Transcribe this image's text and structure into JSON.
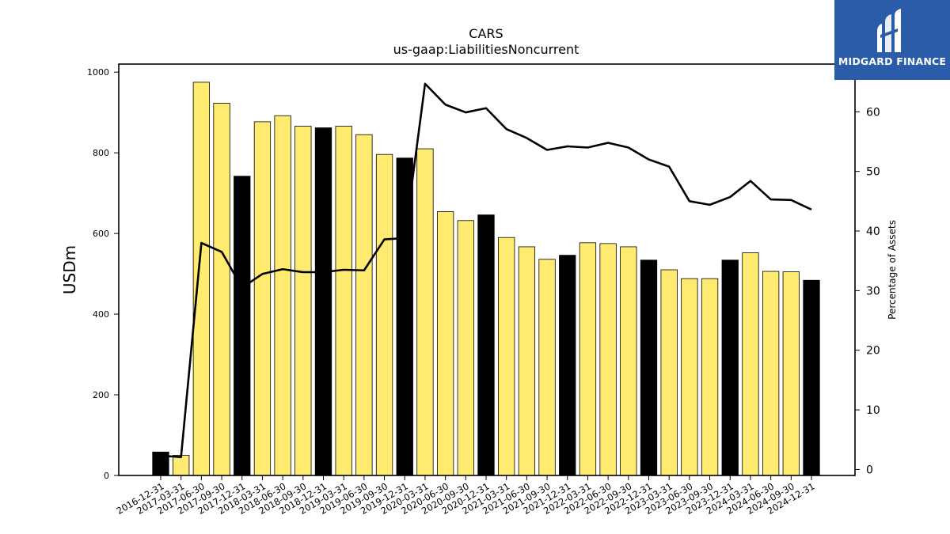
{
  "chart_data": {
    "type": "bar+line",
    "title": "CARS",
    "subtitle": "us-gaap:LiabilitiesNoncurrent",
    "ylabel": "USDm",
    "y2label": "Percentage of Assets",
    "ylim": [
      0,
      1020
    ],
    "y2lim": [
      -1,
      68
    ],
    "yticks": [
      0,
      200,
      400,
      600,
      800,
      1000
    ],
    "y2ticks": [
      0,
      10,
      20,
      30,
      40,
      50,
      60
    ],
    "categories": [
      "2016-12-31",
      "2017-03-31",
      "2017-06-30",
      "2017-09-30",
      "2017-12-31",
      "2018-03-31",
      "2018-06-30",
      "2018-09-30",
      "2018-12-31",
      "2019-03-31",
      "2019-06-30",
      "2019-09-30",
      "2019-12-31",
      "2020-03-31",
      "2020-06-30",
      "2020-09-30",
      "2020-12-31",
      "2021-03-31",
      "2021-06-30",
      "2021-09-30",
      "2021-12-31",
      "2022-03-31",
      "2022-06-30",
      "2022-09-30",
      "2022-12-31",
      "2023-03-31",
      "2023-06-30",
      "2023-09-30",
      "2023-12-31",
      "2024-03-31",
      "2024-06-30",
      "2024-09-30",
      "2024-12-31"
    ],
    "series": [
      {
        "kind": "bar",
        "values": [
          58,
          50,
          975,
          923,
          742,
          877,
          892,
          866,
          862,
          866,
          845,
          796,
          787,
          810,
          654,
          632,
          646,
          590,
          567,
          536,
          546,
          577,
          575,
          567,
          534,
          510,
          488,
          488,
          534,
          552,
          506,
          505,
          484
        ],
        "annual_color": "#000000",
        "quarterly_color": "#ffeb70"
      },
      {
        "kind": "line",
        "axis": "right",
        "color": "#000000",
        "values": [
          2.3,
          2.1,
          38.0,
          36.5,
          30.5,
          32.8,
          33.6,
          33.1,
          33.1,
          33.5,
          33.4,
          38.6,
          38.8,
          64.7,
          61.2,
          59.9,
          60.6,
          57.1,
          55.6,
          53.6,
          54.2,
          54.0,
          54.8,
          54.0,
          52.0,
          50.8,
          45.0,
          44.4,
          45.7,
          48.4,
          45.3,
          45.2,
          43.6
        ]
      }
    ]
  },
  "logo": {
    "text": "MIDGARD FINANCE",
    "bg_color": "#2a5caa"
  }
}
